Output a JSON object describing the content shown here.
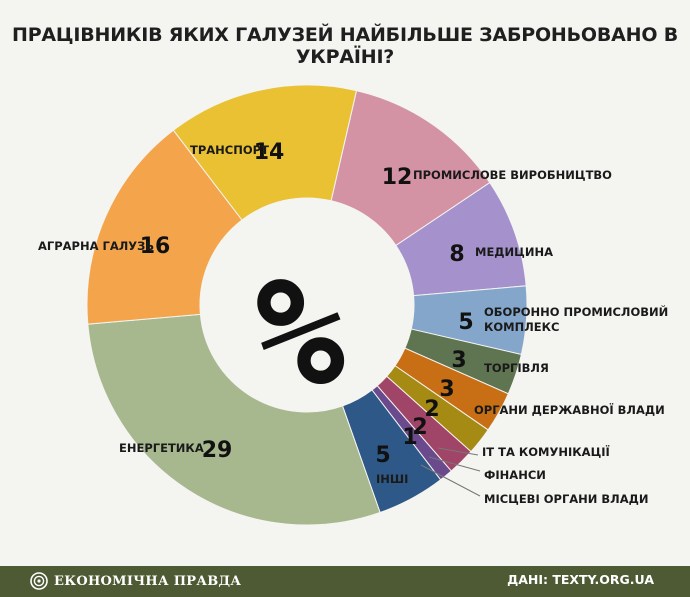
{
  "header": {
    "title": "ПРАЦІВНИКІВ ЯКИХ ГАЛУЗЕЙ НАЙБІЛЬШЕ ЗАБРОНЬОВАНО В УКРАЇНІ?"
  },
  "center_symbol": "%",
  "footer": {
    "brand": "ЕКОНОМІЧНА ПРАВДА",
    "source": "ДАНІ: TEXTY.ORG.UA"
  },
  "chart_data": {
    "type": "pie",
    "title": "ПРАЦІВНИКІВ ЯКИХ ГАЛУЗЕЙ НАЙБІЛЬШЕ ЗАБРОНЬОВАНО В УКРАЇНІ?",
    "unit": "%",
    "slices": [
      {
        "label": "ПРОМИСЛОВЕ ВИРОБНИЦТВО",
        "value": 12,
        "color": "#d493a5"
      },
      {
        "label": "МЕДИЦИНА",
        "value": 8,
        "color": "#a592cc"
      },
      {
        "label": "ОБОРОННО ПРОМИСЛОВИЙ КОМПЛЕКС",
        "value": 5,
        "color": "#85a6cb"
      },
      {
        "label": "ТОРГІВЛЯ",
        "value": 3,
        "color": "#5f7450"
      },
      {
        "label": "ОРГАНИ ДЕРЖАВНОЇ ВЛАДИ",
        "value": 3,
        "color": "#c86e14"
      },
      {
        "label": "IT ТА КОМУНІКАЦІЇ",
        "value": 2,
        "color": "#a58a13"
      },
      {
        "label": "ФІНАНСИ",
        "value": 2,
        "color": "#a04468"
      },
      {
        "label": "МІСЦЕВІ ОРГАНИ ВЛАДИ",
        "value": 1,
        "color": "#6a4a8c"
      },
      {
        "label": "ІНШІ",
        "value": 5,
        "color": "#2e5887"
      },
      {
        "label": "ЕНЕРГЕТИКА",
        "value": 29,
        "color": "#a7b88f"
      },
      {
        "label": "АГРАРНА ГАЛУЗЬ",
        "value": 16,
        "color": "#f4a54c"
      },
      {
        "label": "ТРАНСПОРТ",
        "value": 14,
        "color": "#e9c132"
      }
    ]
  }
}
